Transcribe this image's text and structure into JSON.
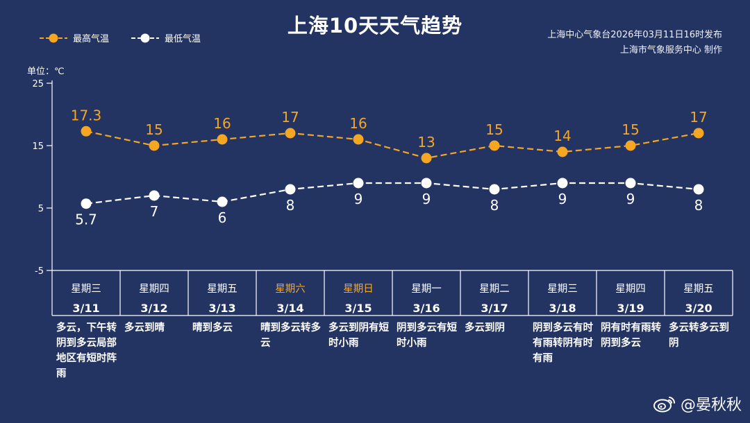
{
  "title": "上海10天天气趋势",
  "source_lines": [
    "上海中心气象台2026年03月11日16时发布",
    "上海市气象服务中心  制作"
  ],
  "legend": [
    {
      "name": "最高气温",
      "color": "#f5a623"
    },
    {
      "name": "最低气温",
      "color": "#ffffff"
    }
  ],
  "unit_label": "单位：℃",
  "watermark": {
    "icon": "weibo-icon",
    "text": "@晏秋秋"
  },
  "colors": {
    "background": "#233463",
    "high": "#f5a623",
    "low": "#ffffff",
    "weekend": "#f5a623"
  },
  "chart_data": {
    "type": "line",
    "ylim": [
      -5,
      25
    ],
    "yticks": [
      -5,
      5,
      15,
      25
    ],
    "categories": [
      "3/11",
      "3/12",
      "3/13",
      "3/14",
      "3/15",
      "3/16",
      "3/17",
      "3/18",
      "3/19",
      "3/20"
    ],
    "weekdays": [
      "星期三",
      "星期四",
      "星期五",
      "星期六",
      "星期日",
      "星期一",
      "星期二",
      "星期三",
      "星期四",
      "星期五"
    ],
    "weekend": [
      false,
      false,
      false,
      true,
      true,
      false,
      false,
      false,
      false,
      false
    ],
    "series": [
      {
        "name": "最高气温",
        "values": [
          17.3,
          15,
          16,
          17,
          16,
          13,
          15,
          14,
          15,
          17
        ],
        "labels": [
          "17.3",
          "15",
          "16",
          "17",
          "16",
          "13",
          "15",
          "14",
          "15",
          "17"
        ]
      },
      {
        "name": "最低气温",
        "values": [
          5.7,
          7,
          6,
          8,
          9,
          9,
          8,
          9,
          9,
          8
        ],
        "labels": [
          "5.7",
          "7",
          "6",
          "8",
          "9",
          "9",
          "8",
          "9",
          "9",
          "8"
        ]
      }
    ],
    "descriptions": [
      "多云，下午转阴到多云局部地区有短时阵雨",
      "多云到晴",
      "晴到多云",
      "晴到多云转多云",
      "多云到阴有短时小雨",
      "阴到多云有短时小雨",
      "多云到阴",
      "阴到多云有时有雨转阴有时有雨",
      "阴有时有雨转阴到多云",
      "多云转多云到阴"
    ]
  }
}
